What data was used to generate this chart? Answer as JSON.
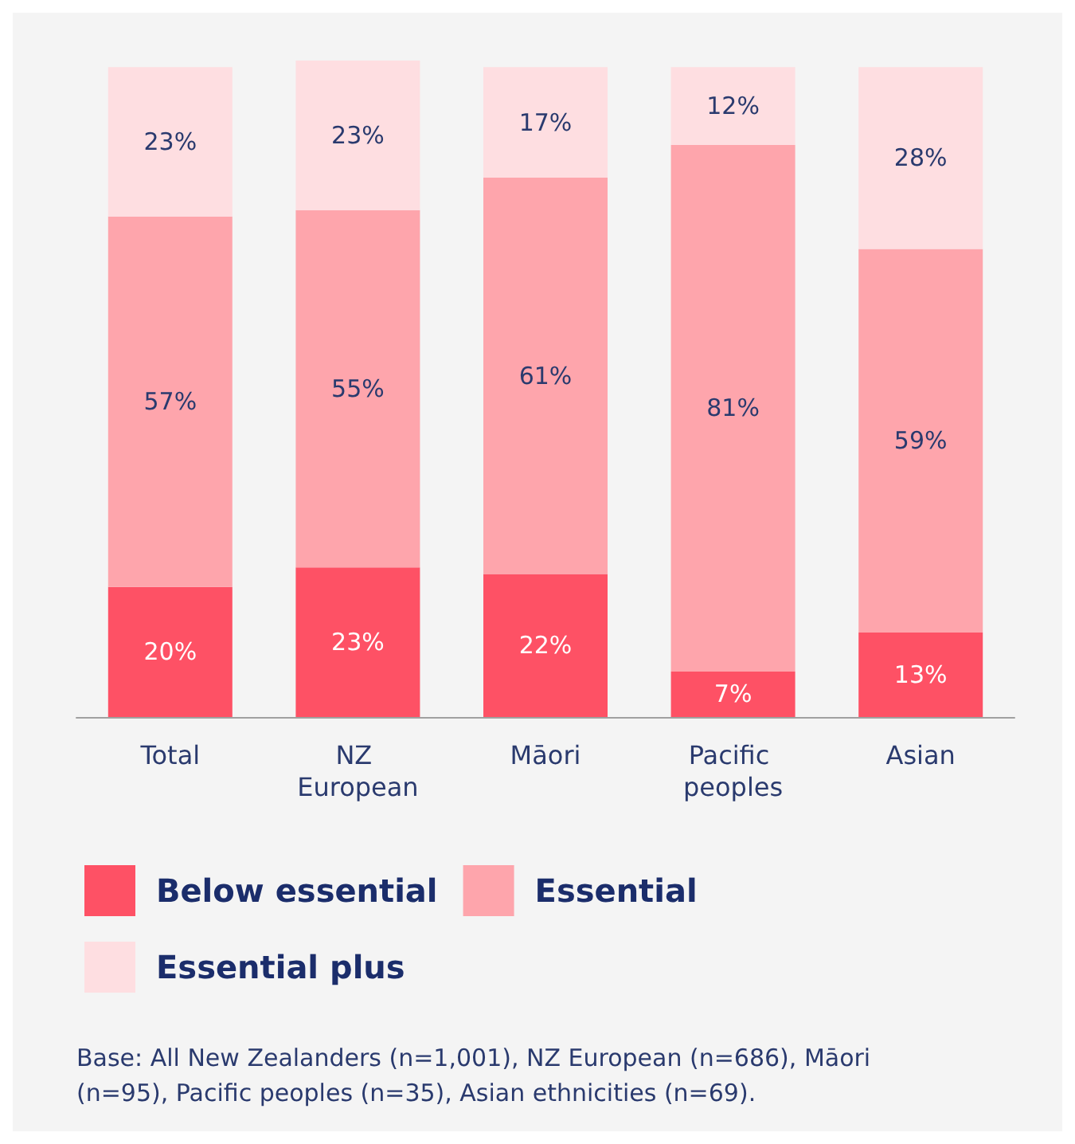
{
  "chart_data": {
    "type": "bar",
    "stacked": true,
    "legend": "bottom",
    "categories": [
      "Total",
      "NZ European",
      "Māori",
      "Pacific peoples",
      "Asian"
    ],
    "series": [
      {
        "name": "Below essential",
        "color": "#fe5165",
        "values": [
          20,
          23,
          22,
          7,
          13
        ],
        "value_labels": [
          "20%",
          "23%",
          "22%",
          "7%",
          "13%"
        ]
      },
      {
        "name": "Essential",
        "color": "#fea5ac",
        "values": [
          57,
          55,
          61,
          81,
          59
        ],
        "value_labels": [
          "57%",
          "55%",
          "61%",
          "81%",
          "59%"
        ]
      },
      {
        "name": "Essential plus",
        "color": "#fedee1",
        "values": [
          23,
          23,
          17,
          12,
          28
        ],
        "value_labels": [
          "23%",
          "23%",
          "17%",
          "12%",
          "28%"
        ]
      }
    ],
    "annotations": [
      "Base: All New Zealanders (n=1,001), NZ European (n=686), Māori (n=95), Pacific peoples (n=35), Asian ethnicities (n=69)."
    ]
  }
}
